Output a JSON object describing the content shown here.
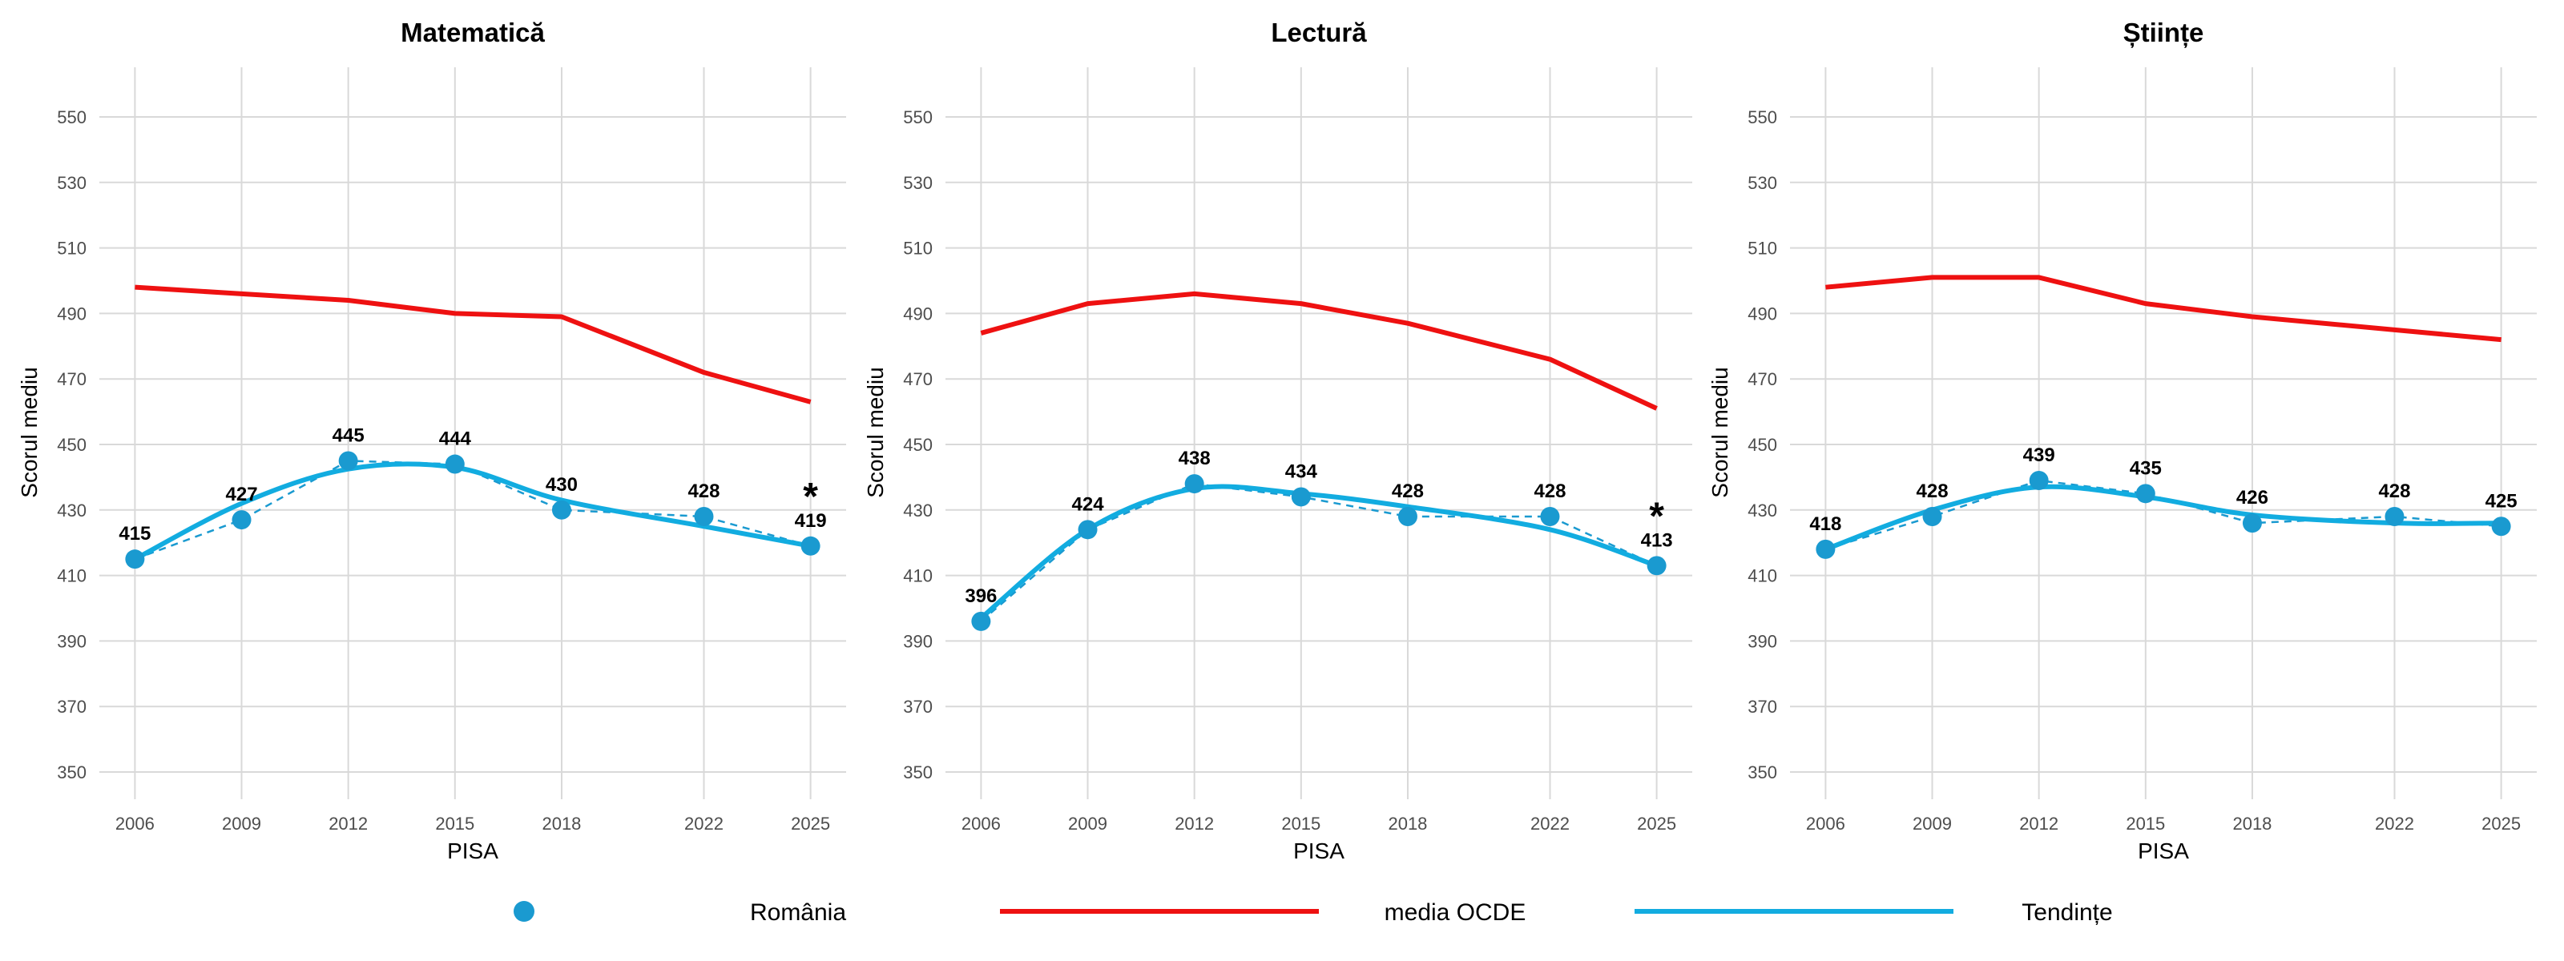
{
  "chart_data": [
    {
      "type": "line",
      "title": "Matematică",
      "xlabel": "PISA",
      "ylabel": "Scorul mediu",
      "x": [
        2006,
        2009,
        2012,
        2015,
        2018,
        2022,
        2025
      ],
      "ylim": [
        343,
        565
      ],
      "yticks": [
        350,
        370,
        390,
        410,
        430,
        450,
        470,
        490,
        510,
        530,
        550
      ],
      "series": [
        {
          "name": "România",
          "values": [
            415,
            427,
            445,
            444,
            430,
            428,
            419
          ]
        },
        {
          "name": "media OCDE",
          "values": [
            498,
            496,
            494,
            490,
            489,
            472,
            463
          ]
        },
        {
          "name": "Tendințe",
          "values": [
            415,
            432,
            442.5,
            443,
            433,
            425,
            419
          ]
        }
      ],
      "annotations": [
        {
          "x": 2025,
          "text": "*"
        }
      ]
    },
    {
      "type": "line",
      "title": "Lectură",
      "xlabel": "PISA",
      "ylabel": "Scorul mediu",
      "x": [
        2006,
        2009,
        2012,
        2015,
        2018,
        2022,
        2025
      ],
      "ylim": [
        343,
        565
      ],
      "yticks": [
        350,
        370,
        390,
        410,
        430,
        450,
        470,
        490,
        510,
        530,
        550
      ],
      "series": [
        {
          "name": "România",
          "values": [
            396,
            424,
            438,
            434,
            428,
            428,
            413
          ]
        },
        {
          "name": "media OCDE",
          "values": [
            484,
            493,
            496,
            493,
            487,
            476,
            461
          ]
        },
        {
          "name": "Tendințe",
          "values": [
            397,
            424,
            436.5,
            435,
            431,
            424,
            413
          ]
        }
      ],
      "annotations": [
        {
          "x": 2025,
          "text": "*"
        }
      ]
    },
    {
      "type": "line",
      "title": "Științe",
      "xlabel": "PISA",
      "ylabel": "Scorul mediu",
      "x": [
        2006,
        2009,
        2012,
        2015,
        2018,
        2022,
        2025
      ],
      "ylim": [
        343,
        565
      ],
      "yticks": [
        350,
        370,
        390,
        410,
        430,
        450,
        470,
        490,
        510,
        530,
        550
      ],
      "series": [
        {
          "name": "România",
          "values": [
            418,
            428,
            439,
            435,
            426,
            428,
            425
          ]
        },
        {
          "name": "media OCDE",
          "values": [
            498,
            501,
            501,
            493,
            489,
            485,
            482
          ]
        },
        {
          "name": "Tendințe",
          "values": [
            418,
            430,
            437,
            434,
            428.5,
            426,
            426
          ]
        }
      ],
      "annotations": []
    }
  ],
  "legend": {
    "placement": "bottom",
    "items": [
      {
        "label": "România",
        "kind": "point"
      },
      {
        "label": "media OCDE",
        "kind": "line"
      },
      {
        "label": "Tendințe",
        "kind": "line"
      }
    ]
  },
  "colors": {
    "romania": "#1a9ad0",
    "oecd": "#ee1111",
    "trend": "#12ace0",
    "grid": "#d9d9d9"
  }
}
